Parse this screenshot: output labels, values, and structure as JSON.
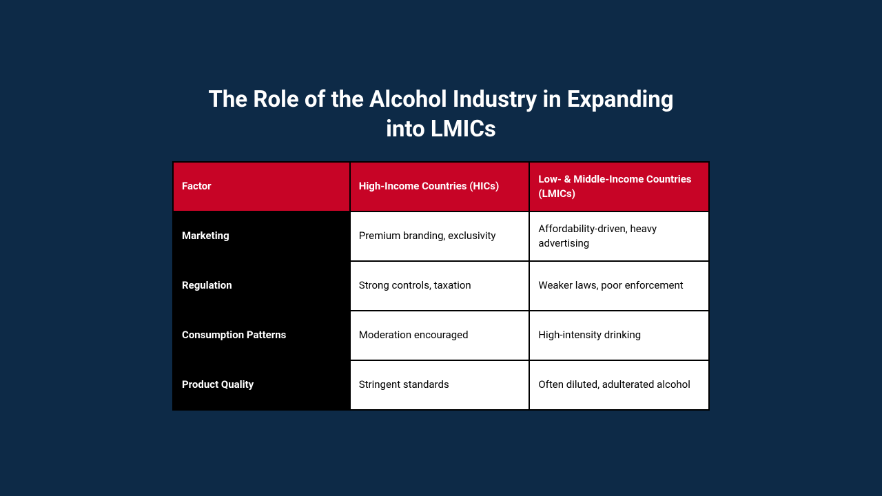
{
  "title": "The Role of the Alcohol Industry in Expanding into LMICs",
  "table": {
    "type": "table",
    "background_color": "#0d2a47",
    "border_color": "#000000",
    "header_bg": "#c70426",
    "header_fg": "#ffffff",
    "row_header_bg": "#000000",
    "row_header_fg": "#ffffff",
    "cell_bg": "#ffffff",
    "cell_fg": "#000000",
    "title_fontsize": 33,
    "cell_fontsize": 15,
    "columns": [
      "Factor",
      "High-Income Countries (HICs)",
      "Low- & Middle-Income Countries (LMICs)"
    ],
    "rows": [
      [
        "Marketing",
        "Premium branding, exclusivity",
        "Affordability-driven, heavy advertising"
      ],
      [
        "Regulation",
        "Strong controls, taxation",
        "Weaker laws, poor enforcement"
      ],
      [
        "Consumption Patterns",
        "Moderation encouraged",
        "High-intensity drinking"
      ],
      [
        "Product Quality",
        "Stringent standards",
        "Often diluted, adulterated alcohol"
      ]
    ]
  }
}
